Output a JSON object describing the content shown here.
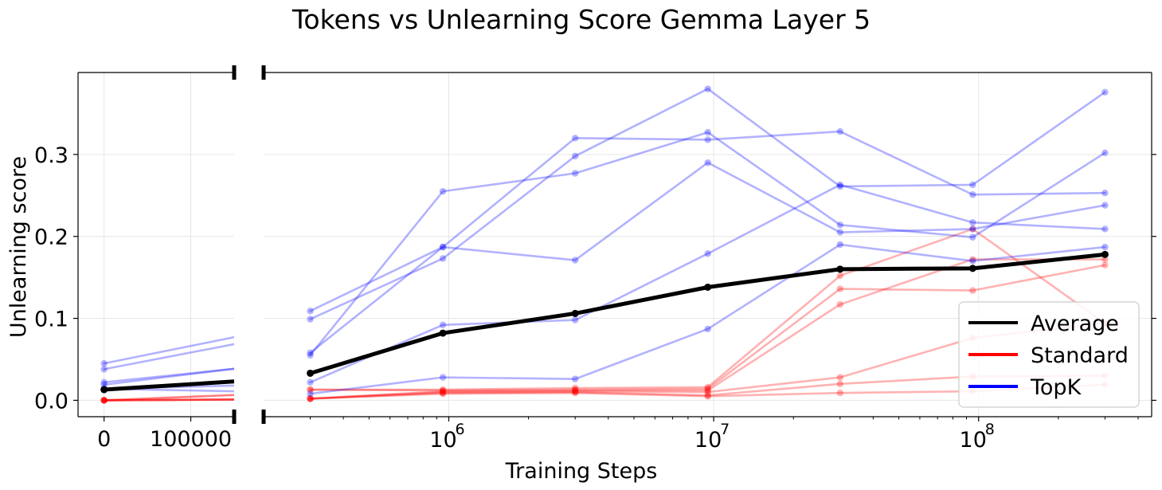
{
  "chart_data": {
    "type": "line",
    "title": "Tokens vs Unlearning Score Gemma Layer 5",
    "xlabel": "Training Steps",
    "ylabel": "Unlearning score",
    "x_scale": "broken: linear [0, 100000] + log",
    "ylim": [
      -0.02,
      0.4
    ],
    "grid": true,
    "legend_position": "lower-right",
    "colors": {
      "average": "#000000",
      "standard": "#ff0000",
      "topk": "#0000ff"
    },
    "left_panel": {
      "xlim": [
        -30000,
        150000
      ],
      "xticks": [
        "0",
        "100000"
      ],
      "yticks": [
        "0.0",
        "0.1",
        "0.2",
        "0.3"
      ]
    },
    "right_panel": {
      "xlim": [
        200000,
        450000000
      ],
      "xticks": [
        {
          "value": 1000000,
          "base": "10",
          "exp": "6"
        },
        {
          "value": 10000000,
          "base": "10",
          "exp": "7"
        },
        {
          "value": 100000000,
          "base": "10",
          "exp": "8"
        }
      ]
    },
    "legend": [
      {
        "name": "Average",
        "color": "#000000"
      },
      {
        "name": "Standard",
        "color": "#ff0000"
      },
      {
        "name": "TopK",
        "color": "#0000ff"
      }
    ],
    "x": [
      0,
      300000,
      950000,
      3000000,
      9500000,
      30000000,
      95000000,
      300000000
    ],
    "series": [
      {
        "group": "topk",
        "values": [
          0.045,
          0.109,
          0.187,
          0.32,
          0.318,
          0.328,
          0.251,
          0.253
        ]
      },
      {
        "group": "topk",
        "values": [
          0.038,
          0.099,
          0.173,
          0.298,
          0.38,
          0.261,
          0.263,
          0.376
        ]
      },
      {
        "group": "topk",
        "values": [
          0.022,
          0.055,
          0.255,
          0.277,
          0.327,
          0.214,
          0.199,
          0.302
        ]
      },
      {
        "group": "topk",
        "values": [
          0.019,
          0.058,
          0.187,
          0.171,
          0.29,
          0.205,
          0.209,
          0.238
        ]
      },
      {
        "group": "topk",
        "values": [
          0.014,
          0.022,
          0.092,
          0.098,
          0.179,
          0.263,
          0.217,
          0.209
        ]
      },
      {
        "group": "topk",
        "values": [
          0.014,
          0.008,
          0.028,
          0.026,
          0.087,
          0.19,
          0.17,
          0.187
        ]
      },
      {
        "group": "standard",
        "values": [
          0.0,
          0.013,
          0.013,
          0.015,
          0.016,
          0.152,
          0.209,
          0.094
        ]
      },
      {
        "group": "standard",
        "values": [
          0.0,
          0.013,
          0.012,
          0.013,
          0.014,
          0.136,
          0.134,
          0.165
        ]
      },
      {
        "group": "standard",
        "values": [
          0.0,
          0.002,
          0.011,
          0.012,
          0.012,
          0.117,
          0.172,
          0.172
        ]
      },
      {
        "group": "standard",
        "values": [
          0.0,
          0.002,
          0.01,
          0.011,
          0.01,
          0.028,
          0.076,
          0.094
        ]
      },
      {
        "group": "standard",
        "values": [
          0.0,
          0.002,
          0.009,
          0.01,
          0.006,
          0.02,
          0.029,
          0.03
        ]
      },
      {
        "group": "standard",
        "values": [
          0.0,
          0.002,
          0.008,
          0.009,
          0.005,
          0.009,
          0.011,
          0.019
        ]
      },
      {
        "group": "average",
        "name": "Average",
        "values": [
          0.013,
          0.033,
          0.082,
          0.106,
          0.138,
          0.16,
          0.161,
          0.178
        ]
      }
    ]
  }
}
